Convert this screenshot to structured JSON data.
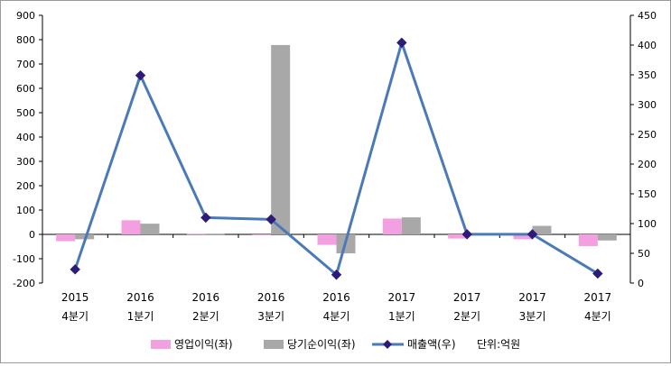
{
  "chart_data": {
    "type": "bar",
    "categories": [
      {
        "year": "2015",
        "quarter": "4분기"
      },
      {
        "year": "2016",
        "quarter": "1분기"
      },
      {
        "year": "2016",
        "quarter": "2분기"
      },
      {
        "year": "2016",
        "quarter": "3분기"
      },
      {
        "year": "2016",
        "quarter": "4분기"
      },
      {
        "year": "2017",
        "quarter": "1분기"
      },
      {
        "year": "2017",
        "quarter": "2분기"
      },
      {
        "year": "2017",
        "quarter": "3분기"
      },
      {
        "year": "2017",
        "quarter": "4분기"
      }
    ],
    "series": [
      {
        "name": "영업이익(좌)",
        "type": "bar",
        "axis": "left",
        "color": "#f2a0e0",
        "values": [
          -28,
          58,
          3,
          -3,
          -43,
          65,
          -17,
          -20,
          -48
        ]
      },
      {
        "name": "당기순이익(좌)",
        "type": "bar",
        "axis": "left",
        "color": "#a8a8a8",
        "values": [
          -20,
          44,
          3,
          778,
          -78,
          70,
          5,
          35,
          -25
        ]
      },
      {
        "name": "매출액(우)",
        "type": "line",
        "axis": "right",
        "color": "#4a7ab8",
        "marker_color": "#2e1a78",
        "values": [
          23,
          349,
          110,
          107,
          14,
          404,
          82,
          82,
          16
        ]
      }
    ],
    "y_left": {
      "min": -200,
      "max": 900,
      "step": 100,
      "ticks": [
        "900",
        "800",
        "700",
        "600",
        "500",
        "400",
        "300",
        "200",
        "100",
        "0",
        "-100",
        "-200"
      ]
    },
    "y_right": {
      "min": 0,
      "max": 450,
      "step": 50,
      "ticks": [
        "450",
        "400",
        "350",
        "300",
        "250",
        "200",
        "150",
        "100",
        "50",
        "0"
      ]
    },
    "grid": false,
    "legend_position": "bottom",
    "unit_note": "단위:억원"
  }
}
